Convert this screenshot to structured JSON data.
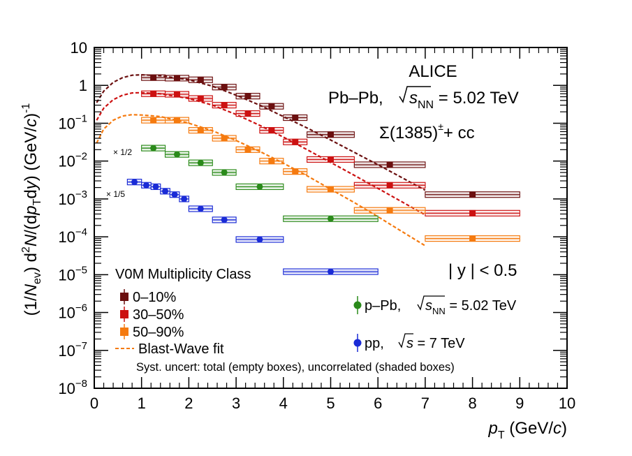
{
  "chart_data": {
    "type": "scatter",
    "x_axis": {
      "label_main": "p",
      "label_sub": "T",
      "label_unit": " (GeV/",
      "label_unit_c": "c",
      "label_close": ")",
      "range": [
        0,
        10
      ],
      "ticks": [
        "0",
        "1",
        "2",
        "3",
        "4",
        "5",
        "6",
        "7",
        "8",
        "9",
        "10"
      ]
    },
    "y_axis": {
      "label": "(1/N_ev) d^2N/(dp_T dy) (GeV/c)^-1",
      "range_log10": [
        -8,
        1
      ],
      "scale": "log",
      "ticks": [
        {
          "exp": 1,
          "base": "10",
          "sup": ""
        },
        {
          "exp": 0,
          "base": "1",
          "sup": ""
        },
        {
          "exp": -1,
          "base": "10",
          "sup": "−1"
        },
        {
          "exp": -2,
          "base": "10",
          "sup": "−2"
        },
        {
          "exp": -3,
          "base": "10",
          "sup": "−3"
        },
        {
          "exp": -4,
          "base": "10",
          "sup": "−4"
        },
        {
          "exp": -5,
          "base": "10",
          "sup": "−5"
        },
        {
          "exp": -6,
          "base": "10",
          "sup": "−6"
        },
        {
          "exp": -7,
          "base": "10",
          "sup": "−7"
        },
        {
          "exp": -8,
          "base": "10",
          "sup": "−8"
        }
      ]
    },
    "title_block": {
      "line1": "ALICE",
      "line2_prefix": "Pb–Pb, ",
      "line2_suffix": " = 5.02 TeV",
      "sqrt_s": "s",
      "sqrt_sub": "NN",
      "particle": "Σ(1385)",
      "particle_sup": "±",
      "particle_suffix": "+ cc",
      "rapidity": "| y | < 0.5"
    },
    "scale_labels": [
      {
        "text": "× 1/2",
        "series": "p–Pb"
      },
      {
        "text": "× 1/5",
        "series": "pp"
      }
    ],
    "legend_left": {
      "header": "V0M Multiplicity Class",
      "entries": [
        "0–10%",
        "30–50%",
        "50–90%"
      ],
      "fit_label": "Blast-Wave fit"
    },
    "legend_right": [
      {
        "label": "p–Pb,",
        "energy": " = 5.02 TeV",
        "sqrt": "s",
        "sub": "NN",
        "color": "#2a8a1a"
      },
      {
        "label": "pp,",
        "energy": " = 7 TeV",
        "sqrt": "s",
        "sub": "",
        "color": "#1a2bd6"
      }
    ],
    "syst_note": "Syst. uncert: total (empty boxes), uncorrelated (shaded boxes)",
    "series": [
      {
        "name": "0–10%",
        "color": "#6b0f0f",
        "marker": "square",
        "bin_edges": [
          1.0,
          1.5,
          2.0,
          2.5,
          3.0,
          3.5,
          4.0,
          4.5,
          5.5,
          7.0,
          9.0
        ],
        "x": [
          1.25,
          1.75,
          2.25,
          2.75,
          3.25,
          3.75,
          4.25,
          5.0,
          6.25,
          8.0
        ],
        "y": [
          1.6,
          1.55,
          1.4,
          0.9,
          0.52,
          0.28,
          0.14,
          0.05,
          0.008,
          0.0013
        ]
      },
      {
        "name": "30–50%",
        "color": "#cc1111",
        "marker": "square",
        "bin_edges": [
          1.0,
          1.5,
          2.0,
          2.5,
          3.0,
          3.5,
          4.0,
          4.5,
          5.5,
          7.0,
          9.0
        ],
        "x": [
          1.25,
          1.75,
          2.25,
          2.75,
          3.25,
          3.75,
          4.25,
          5.0,
          6.25,
          8.0
        ],
        "y": [
          0.6,
          0.58,
          0.45,
          0.3,
          0.18,
          0.065,
          0.032,
          0.011,
          0.0023,
          0.00042
        ]
      },
      {
        "name": "50–90%",
        "color": "#f57a0f",
        "marker": "square",
        "bin_edges": [
          1.0,
          1.5,
          2.0,
          2.5,
          3.0,
          3.5,
          4.0,
          4.5,
          5.5,
          7.0,
          9.0
        ],
        "x": [
          1.25,
          1.75,
          2.25,
          2.75,
          3.25,
          3.75,
          4.25,
          5.0,
          6.25,
          8.0
        ],
        "y": [
          0.12,
          0.12,
          0.065,
          0.04,
          0.02,
          0.01,
          0.0053,
          0.0018,
          0.0005,
          9e-05
        ]
      },
      {
        "name": "p–Pb",
        "color": "#2a8a1a",
        "marker": "circle",
        "bin_edges": [
          1.0,
          1.5,
          2.0,
          2.5,
          3.0,
          4.0,
          6.0
        ],
        "x": [
          1.25,
          1.75,
          2.25,
          2.75,
          3.5,
          5.0
        ],
        "y": [
          0.022,
          0.015,
          0.009,
          0.005,
          0.0021,
          0.0003
        ]
      },
      {
        "name": "pp",
        "color": "#1a2bd6",
        "marker": "circle",
        "bin_edges": [
          0.7,
          1.0,
          1.2,
          1.4,
          1.6,
          1.8,
          2.0,
          2.5,
          3.0,
          4.0,
          6.0
        ],
        "x": [
          0.85,
          1.1,
          1.3,
          1.5,
          1.7,
          1.9,
          2.25,
          2.75,
          3.5,
          5.0
        ],
        "y": [
          0.0028,
          0.0023,
          0.0021,
          0.0016,
          0.0013,
          0.001,
          0.00055,
          0.00028,
          8.5e-05,
          1.2e-05
        ]
      }
    ],
    "fits": [
      {
        "series": "0–10%",
        "color": "#6b0f0f",
        "x": [
          0.05,
          0.2,
          0.4,
          0.6,
          0.8,
          1.0,
          1.4,
          2.0,
          2.5,
          3.0,
          3.5,
          4.0,
          4.5,
          5.0,
          5.5,
          6.0,
          6.5,
          7.0
        ],
        "y": [
          0.35,
          0.7,
          1.2,
          1.6,
          1.85,
          1.9,
          1.8,
          1.4,
          0.95,
          0.55,
          0.3,
          0.15,
          0.075,
          0.036,
          0.017,
          0.008,
          0.0037,
          0.0017
        ]
      },
      {
        "series": "30–50%",
        "color": "#cc1111",
        "x": [
          0.05,
          0.2,
          0.4,
          0.6,
          0.8,
          1.0,
          1.4,
          2.0,
          2.5,
          3.0,
          3.5,
          4.0,
          4.5,
          5.0,
          5.5,
          6.0,
          6.5,
          7.0
        ],
        "y": [
          0.12,
          0.25,
          0.42,
          0.55,
          0.63,
          0.64,
          0.6,
          0.45,
          0.3,
          0.17,
          0.088,
          0.043,
          0.02,
          0.0092,
          0.0042,
          0.0019,
          0.00085,
          0.00038
        ]
      },
      {
        "series": "50–90%",
        "color": "#f57a0f",
        "x": [
          0.05,
          0.2,
          0.4,
          0.6,
          0.8,
          1.0,
          1.4,
          2.0,
          2.5,
          3.0,
          3.5,
          4.0,
          4.5,
          5.0,
          5.5,
          6.0,
          6.5,
          7.0
        ],
        "y": [
          0.03,
          0.07,
          0.12,
          0.155,
          0.168,
          0.165,
          0.15,
          0.1,
          0.063,
          0.035,
          0.018,
          0.0088,
          0.0041,
          0.0018,
          0.0008,
          0.00034,
          0.00014,
          5.8e-05
        ]
      }
    ]
  }
}
